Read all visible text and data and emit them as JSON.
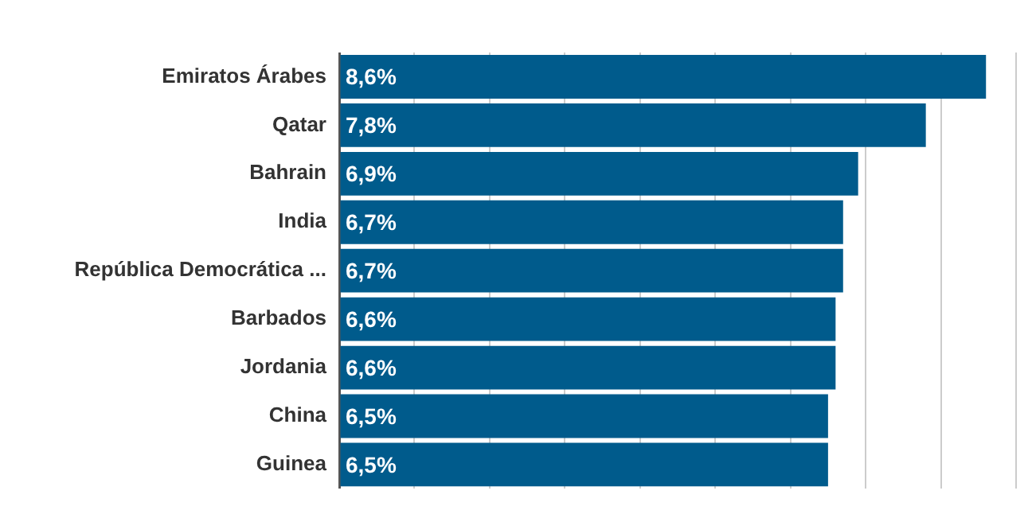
{
  "chart_data": {
    "type": "bar",
    "orientation": "horizontal",
    "categories": [
      "Emiratos Árabes",
      "Qatar",
      "Bahrain",
      "India",
      "República Democrática ...",
      "Barbados",
      "Jordania",
      "China",
      "Guinea"
    ],
    "values": [
      8.6,
      7.8,
      6.9,
      6.7,
      6.7,
      6.6,
      6.6,
      6.5,
      6.5
    ],
    "value_labels": [
      "8,6%",
      "7,8%",
      "6,9%",
      "6,7%",
      "6,7%",
      "6,6%",
      "6,6%",
      "6,5%",
      "6,5%"
    ],
    "color": "#005b8c",
    "xlim": [
      0,
      9
    ],
    "xticks": [
      {
        "value": 0,
        "label": null
      },
      {
        "value": 1,
        "label": null
      },
      {
        "value": 2,
        "label": null
      },
      {
        "value": 3,
        "label": null
      },
      {
        "value": 4,
        "label": null
      },
      {
        "value": 5,
        "label": null
      },
      {
        "value": 6,
        "label": null
      },
      {
        "value": 7,
        "label": null
      },
      {
        "value": 8,
        "label": null
      },
      {
        "value": 9,
        "label": null
      }
    ],
    "grid": "x",
    "tick_labels": "y",
    "legend": false
  }
}
